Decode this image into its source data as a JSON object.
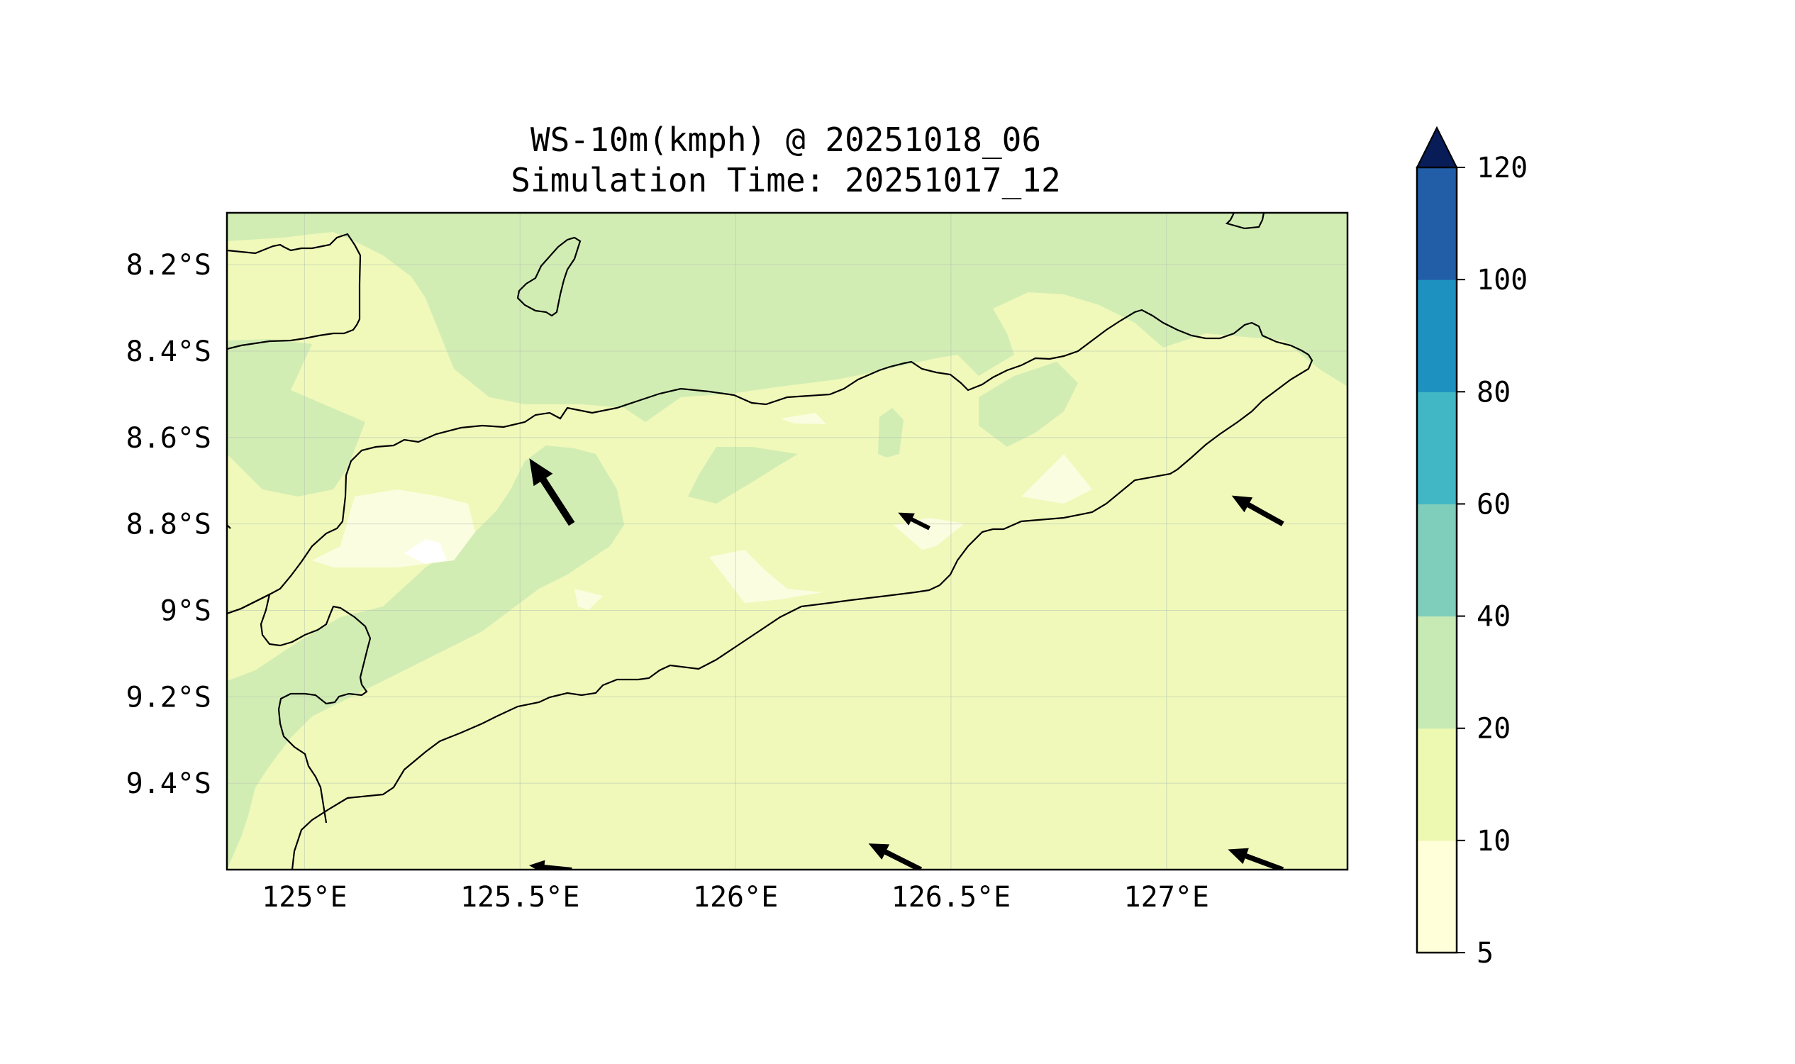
{
  "title": {
    "line1": "WS-10m(kmph) @ 20251018_06",
    "line2": "Simulation Time: 20251017_12"
  },
  "map": {
    "lon_range": [
      124.82,
      127.42
    ],
    "lat_range": [
      -9.6,
      -8.08
    ],
    "x_ticks": [
      {
        "value": 125.0,
        "label": "125°E"
      },
      {
        "value": 125.5,
        "label": "125.5°E"
      },
      {
        "value": 126.0,
        "label": "126°E"
      },
      {
        "value": 126.5,
        "label": "126.5°E"
      },
      {
        "value": 127.0,
        "label": "127°E"
      }
    ],
    "y_ticks": [
      {
        "value": -8.2,
        "label": "8.2°S"
      },
      {
        "value": -8.4,
        "label": "8.4°S"
      },
      {
        "value": -8.6,
        "label": "8.6°S"
      },
      {
        "value": -8.8,
        "label": "8.8°S"
      },
      {
        "value": -9.0,
        "label": "9°S"
      },
      {
        "value": -9.2,
        "label": "9.2°S"
      },
      {
        "value": -9.4,
        "label": "9.4°S"
      }
    ],
    "background_color": "#f0f9ba",
    "wind_arrows": [
      {
        "lon": 125.62,
        "lat": -8.8,
        "u": -0.55,
        "v": 0.85,
        "scale": 1.0
      },
      {
        "lon": 126.45,
        "lat": -8.81,
        "u": -0.9,
        "v": 0.45,
        "scale": 0.45
      },
      {
        "lon": 127.27,
        "lat": -8.8,
        "u": -0.9,
        "v": 0.5,
        "scale": 0.75
      },
      {
        "lon": 125.62,
        "lat": -9.6,
        "u": -1.0,
        "v": 0.1,
        "scale": 0.55
      },
      {
        "lon": 126.43,
        "lat": -9.6,
        "u": -0.9,
        "v": 0.45,
        "scale": 0.75
      },
      {
        "lon": 127.27,
        "lat": -9.6,
        "u": -0.95,
        "v": 0.35,
        "scale": 0.75
      }
    ]
  },
  "colorbar": {
    "bounds": [
      5,
      10,
      20,
      40,
      60,
      80,
      100,
      120
    ],
    "tick_labels": [
      "5",
      "10",
      "20",
      "40",
      "60",
      "80",
      "100",
      "120"
    ],
    "colors": [
      "#ffffd9",
      "#edf8b1",
      "#c7e9b4",
      "#7fcdbb",
      "#41b6c4",
      "#1d91c0",
      "#225ea8",
      "#253494"
    ],
    "extend_color": "#081d58"
  }
}
